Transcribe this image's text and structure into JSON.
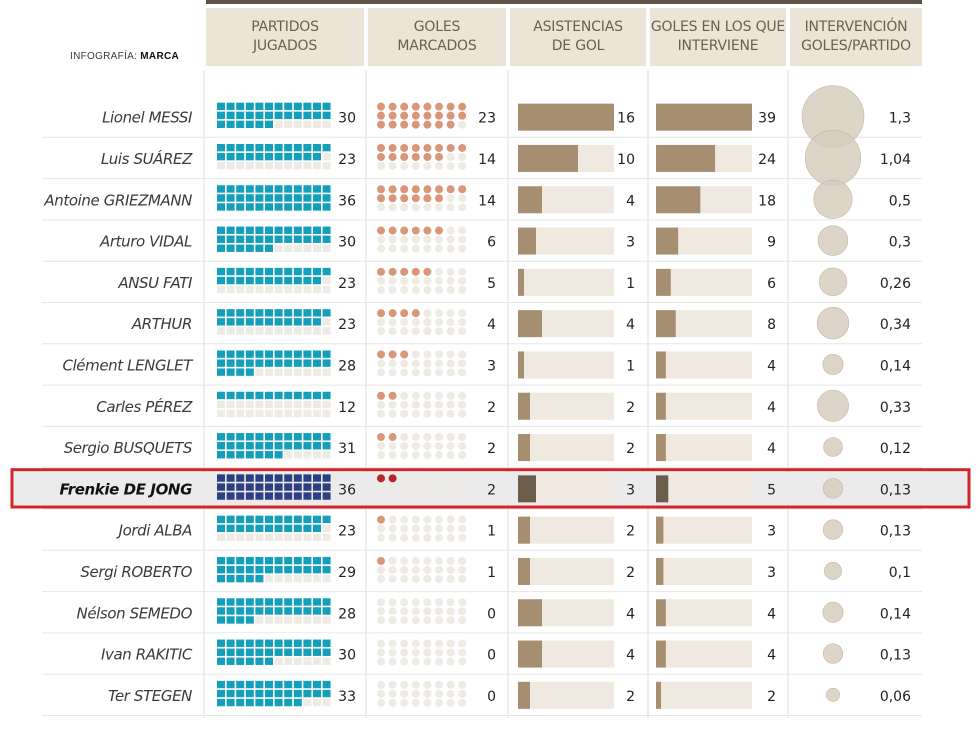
{
  "credit": {
    "prefix": "INFOGRAFÍA:",
    "brand": "MARCA"
  },
  "columns": [
    {
      "label": "PARTIDOS\nJUGADOS"
    },
    {
      "label": "GOLES\nMARCADOS"
    },
    {
      "label": "ASISTENCIAS\nDE GOL"
    },
    {
      "label": "GOLES EN LOS QUE\nINTERVIENE"
    },
    {
      "label": "INTERVENCIÓN\nGOLES/PARTIDO"
    }
  ],
  "highlight_player": "Frenkie DE JONG",
  "colors": {
    "games": "#14a0bb",
    "games_highlight": "#2c3f82",
    "goals": "#d99678",
    "goals_highlight": "#b4262a",
    "bar": "#a58f70",
    "bar_highlight": "#6b5d4a",
    "bar_bg": "#efe9e0",
    "circle": "#d7ccbd",
    "circle_stroke": "#c4b6a3",
    "empty_dot": "#eeeae4",
    "highlight_border": "#d0262b",
    "highlight_bg": "#ebebeb"
  },
  "chart_data": {
    "type": "table",
    "title": "",
    "scales": {
      "games_max": 36,
      "goals_max": 23,
      "assists_max": 16,
      "involved_max": 39,
      "ratio_max": 1.3
    },
    "players": [
      {
        "first": "Lionel",
        "last": "MESSI",
        "games": 30,
        "goals": 23,
        "assists": 16,
        "involved": 39,
        "ratio": "1,3"
      },
      {
        "first": "Luis",
        "last": "SUÁREZ",
        "games": 23,
        "goals": 14,
        "assists": 10,
        "involved": 24,
        "ratio": "1,04"
      },
      {
        "first": "Antoine",
        "last": "GRIEZMANN",
        "games": 36,
        "goals": 14,
        "assists": 4,
        "involved": 18,
        "ratio": "0,5"
      },
      {
        "first": "Arturo",
        "last": "VIDAL",
        "games": 30,
        "goals": 6,
        "assists": 3,
        "involved": 9,
        "ratio": "0,3"
      },
      {
        "first": "ANSU",
        "last": "FATI",
        "games": 23,
        "goals": 5,
        "assists": 1,
        "involved": 6,
        "ratio": "0,26"
      },
      {
        "first": "",
        "last": "ARTHUR",
        "games": 23,
        "goals": 4,
        "assists": 4,
        "involved": 8,
        "ratio": "0,34"
      },
      {
        "first": "Clément",
        "last": "LENGLET",
        "games": 28,
        "goals": 3,
        "assists": 1,
        "involved": 4,
        "ratio": "0,14"
      },
      {
        "first": "Carles",
        "last": "PÉREZ",
        "games": 12,
        "goals": 2,
        "assists": 2,
        "involved": 4,
        "ratio": "0,33"
      },
      {
        "first": "Sergio",
        "last": "BUSQUETS",
        "games": 31,
        "goals": 2,
        "assists": 2,
        "involved": 4,
        "ratio": "0,12"
      },
      {
        "first": "Frenkie",
        "last": "DE JONG",
        "games": 36,
        "goals": 2,
        "assists": 3,
        "involved": 5,
        "ratio": "0,13"
      },
      {
        "first": "Jordi",
        "last": "ALBA",
        "games": 23,
        "goals": 1,
        "assists": 2,
        "involved": 3,
        "ratio": "0,13"
      },
      {
        "first": "Sergi",
        "last": "ROBERTO",
        "games": 29,
        "goals": 1,
        "assists": 2,
        "involved": 3,
        "ratio": "0,1"
      },
      {
        "first": "Nélson",
        "last": "SEMEDO",
        "games": 28,
        "goals": 0,
        "assists": 4,
        "involved": 4,
        "ratio": "0,14"
      },
      {
        "first": "Ivan",
        "last": "RAKITIC",
        "games": 30,
        "goals": 0,
        "assists": 4,
        "involved": 4,
        "ratio": "0,13"
      },
      {
        "first": "Ter",
        "last": "STEGEN",
        "games": 33,
        "goals": 0,
        "assists": 2,
        "involved": 2,
        "ratio": "0,06"
      }
    ]
  }
}
